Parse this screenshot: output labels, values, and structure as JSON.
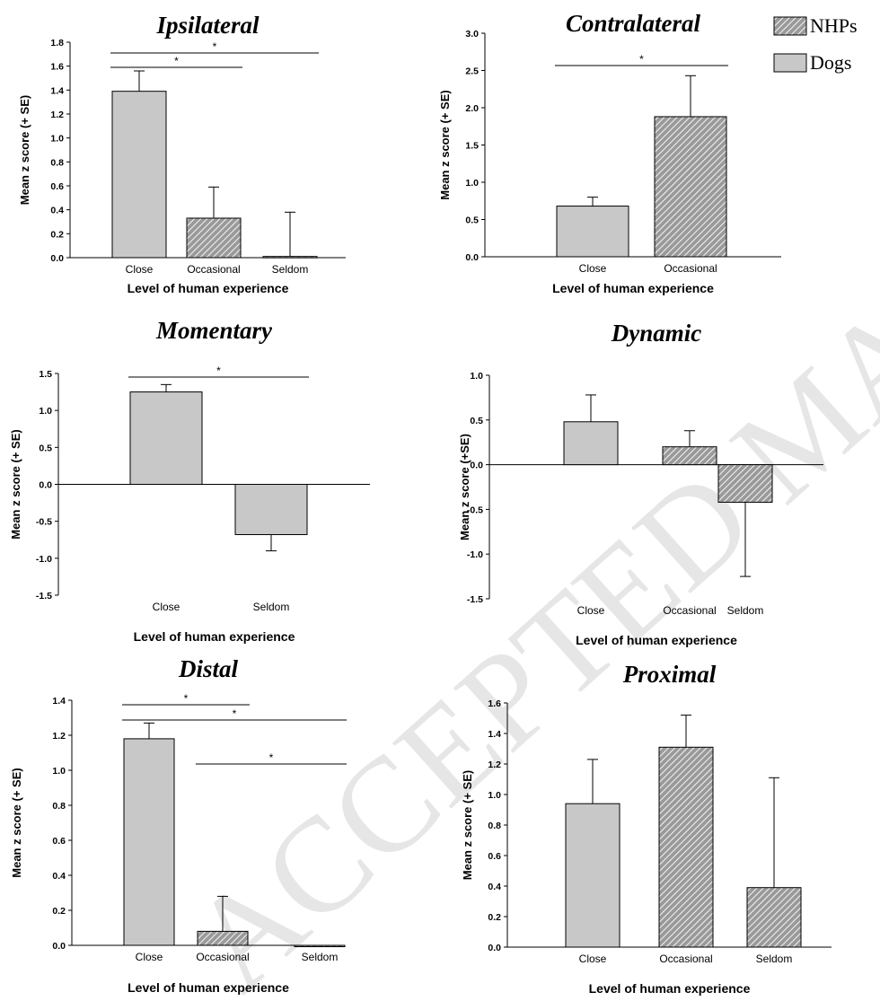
{
  "legend": [
    {
      "label": "NHPs",
      "pattern": "hatch"
    },
    {
      "label": "Dogs",
      "pattern": "solid"
    }
  ],
  "watermark": "ACCEPTED MANUSCRIPT",
  "colors": {
    "dogs_fill": "#c8c8c8",
    "nhps_fill": "#9a9a9a",
    "hatch_line": "#ffffff"
  },
  "chart_data": [
    {
      "type": "bar",
      "title": "Ipsilateral",
      "xlabel": "Level of human experience",
      "ylabel": "Mean z score (+ SE)",
      "categories": [
        "Close",
        "Occasional",
        "Seldom"
      ],
      "values": [
        1.39,
        0.33,
        0.01
      ],
      "errors": [
        0.17,
        0.26,
        0.37
      ],
      "groups": [
        "Dogs",
        "NHPs",
        "NHPs"
      ],
      "ylim": [
        0,
        1.8
      ],
      "yticks": [
        "0.0",
        "0.2",
        "0.4",
        "0.6",
        "0.8",
        "1.0",
        "1.2",
        "1.4",
        "1.6",
        "1.8"
      ],
      "significance": [
        {
          "from": "Close",
          "to": "Occasional",
          "label": "*"
        },
        {
          "from": "Close",
          "to": "Seldom",
          "label": "*"
        }
      ]
    },
    {
      "type": "bar",
      "title": "Contralateral",
      "xlabel": "Level of human experience",
      "ylabel": "Mean z score (+ SE)",
      "categories": [
        "Close",
        "Occasional"
      ],
      "values": [
        0.68,
        1.88
      ],
      "errors": [
        0.12,
        0.55
      ],
      "groups": [
        "Dogs",
        "NHPs"
      ],
      "ylim": [
        0,
        3.0
      ],
      "yticks": [
        "0.0",
        "0.5",
        "1.0",
        "1.5",
        "2.0",
        "2.5",
        "3.0"
      ],
      "significance": [
        {
          "from": "Close",
          "to": "Occasional",
          "label": "*"
        }
      ]
    },
    {
      "type": "bar",
      "title": "Momentary",
      "xlabel": "Level of human experience",
      "ylabel": "Mean z score (+ SE)",
      "categories": [
        "Close",
        "Seldom"
      ],
      "values": [
        1.25,
        -0.68
      ],
      "errors": [
        0.1,
        0.22
      ],
      "groups": [
        "Dogs",
        "Dogs"
      ],
      "ylim": [
        -1.5,
        1.5
      ],
      "yticks": [
        "-1.5",
        "-1.0",
        "-0.5",
        "0.0",
        "0.5",
        "1.0",
        "1.5"
      ],
      "significance": [
        {
          "from": "Close",
          "to": "Seldom",
          "label": "*"
        }
      ]
    },
    {
      "type": "bar",
      "title": "Dynamic",
      "xlabel": "Level of human experience",
      "ylabel": "Mean z score (+SE)",
      "categories": [
        "Close",
        "Occasional",
        "Seldom"
      ],
      "values": [
        0.48,
        0.2,
        -0.42
      ],
      "errors": [
        0.3,
        0.18,
        0.83
      ],
      "groups": [
        "Dogs",
        "NHPs",
        "NHPs"
      ],
      "ylim": [
        -1.5,
        1.0
      ],
      "yticks": [
        "-1.5",
        "-1.0",
        "-0.5",
        "0.0",
        "0.5",
        "1.0"
      ],
      "significance": []
    },
    {
      "type": "bar",
      "title": "Distal",
      "xlabel": "Level of human experience",
      "ylabel": "Mean z score (+ SE)",
      "categories": [
        "Close",
        "Occasional",
        "Seldom"
      ],
      "values": [
        1.18,
        0.08,
        0.0
      ],
      "errors": [
        0.09,
        0.2,
        0.0
      ],
      "groups": [
        "Dogs",
        "NHPs",
        "NHPs"
      ],
      "ylim": [
        0,
        1.4
      ],
      "yticks": [
        "0.0",
        "0.2",
        "0.4",
        "0.6",
        "0.8",
        "1.0",
        "1.2",
        "1.4"
      ],
      "significance": [
        {
          "from": "Close",
          "to": "Occasional",
          "label": "*"
        },
        {
          "from": "Close",
          "to": "Seldom",
          "label": "*"
        },
        {
          "from": "Occasional",
          "to": "Seldom",
          "label": "*"
        }
      ]
    },
    {
      "type": "bar",
      "title": "Proximal",
      "xlabel": "Level of human experience",
      "ylabel": "Mean z score (+ SE)",
      "categories": [
        "Close",
        "Occasional",
        "Seldom"
      ],
      "values": [
        0.94,
        1.31,
        0.39
      ],
      "errors": [
        0.29,
        0.21,
        0.72
      ],
      "groups": [
        "Dogs",
        "NHPs",
        "NHPs"
      ],
      "ylim": [
        0,
        1.6
      ],
      "yticks": [
        "0.0",
        "0.2",
        "0.4",
        "0.6",
        "0.8",
        "1.0",
        "1.2",
        "1.4",
        "1.6"
      ],
      "significance": []
    }
  ]
}
